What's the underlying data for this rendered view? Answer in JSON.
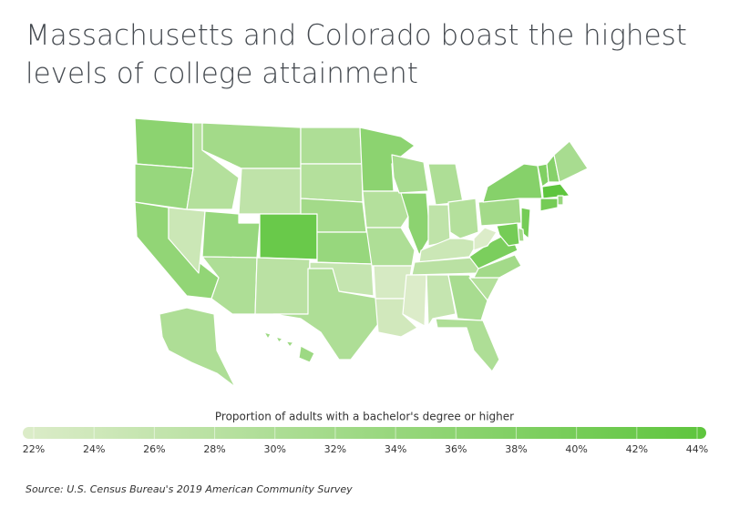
{
  "chart_data": {
    "type": "choropleth",
    "title": "Massachusetts and Colorado boast the highest levels of college attainment",
    "values": [
      36,
      34,
      35,
      25,
      29,
      32,
      27,
      34,
      42,
      30,
      28,
      30,
      29,
      32,
      34,
      26,
      30,
      36,
      29,
      30,
      23,
      24,
      31,
      36,
      30,
      27,
      29,
      25,
      28,
      22,
      26,
      31,
      30,
      29,
      32,
      39,
      22,
      32,
      37,
      38,
      37,
      31,
      44,
      34,
      40,
      40,
      32,
      40,
      30,
      33
    ],
    "colors": [
      "#dcecc9",
      "#5ec53d"
    ],
    "legend_title": "Proportion of adults with a bachelor's degree or higher",
    "clim": [
      22,
      44
    ],
    "ticks": [
      {
        "value": 22,
        "label": "22%"
      },
      {
        "value": 24,
        "label": "24%"
      },
      {
        "value": 26,
        "label": "26%"
      },
      {
        "value": 28,
        "label": "28%"
      },
      {
        "value": 30,
        "label": "30%"
      },
      {
        "value": 32,
        "label": "32%"
      },
      {
        "value": 34,
        "label": "34%"
      },
      {
        "value": 36,
        "label": "36%"
      },
      {
        "value": 38,
        "label": "38%"
      },
      {
        "value": 40,
        "label": "40%"
      },
      {
        "value": 42,
        "label": "42%"
      },
      {
        "value": 44,
        "label": "44%"
      }
    ],
    "source": "Source:  U.S. Census Bureau's 2019 American Community Survey"
  }
}
